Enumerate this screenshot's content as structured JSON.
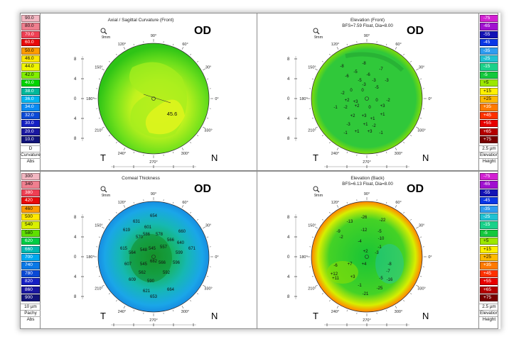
{
  "scales": {
    "curvature": {
      "values": [
        "90.0",
        "80.0",
        "70.0",
        "60.0",
        "50.0",
        "46.0",
        "44.0",
        "42.0",
        "40.0",
        "38.0",
        "36.0",
        "34.0",
        "32.0",
        "30.0",
        "20.0",
        "10.0"
      ],
      "colors": [
        "#f3b7c2",
        "#f07f8f",
        "#ef3f53",
        "#e80a0a",
        "#ff9c00",
        "#ffe800",
        "#f0f500",
        "#82f000",
        "#00d400",
        "#00b89a",
        "#00b5f0",
        "#0a8af2",
        "#0a49d6",
        "#151fc4",
        "#1a17a0",
        "#12147a"
      ],
      "foot": [
        "D",
        "Curvature",
        "Abs"
      ]
    },
    "elevation_front": {
      "values": [
        "-75",
        "-65",
        "-55",
        "-45",
        "-35",
        "-25",
        "-15",
        "-5",
        "+5",
        "+15",
        "+25",
        "+35",
        "+45",
        "+55",
        "+65",
        "+75"
      ],
      "colors": [
        "#d220d2",
        "#a010d0",
        "#1212b4",
        "#0a36e6",
        "#2f9cf0",
        "#20c2d2",
        "#1ad18a",
        "#14c83c",
        "#9be800",
        "#fff000",
        "#ffba00",
        "#ff7a00",
        "#ff3000",
        "#e80000",
        "#b40000",
        "#780000"
      ],
      "foot": [
        "2.5 µm",
        "Elevation",
        "Height"
      ]
    },
    "pachy": {
      "values": [
        "300",
        "340",
        "380",
        "420",
        "460",
        "500",
        "540",
        "580",
        "620",
        "660",
        "700",
        "740",
        "780",
        "820",
        "860",
        "900"
      ],
      "colors": [
        "#f3b7c2",
        "#f07f8f",
        "#ef3f53",
        "#e80a0a",
        "#ff9c00",
        "#ffe800",
        "#d9f000",
        "#5fe000",
        "#00cc44",
        "#00b8b0",
        "#00a8f0",
        "#0a78e6",
        "#0a49d6",
        "#151fc4",
        "#1a17a0",
        "#12147a"
      ],
      "foot": [
        "10 µm",
        "Pachy",
        "Abs"
      ]
    },
    "elevation_back": {
      "values": [
        "-75",
        "-65",
        "-55",
        "-45",
        "-35",
        "-25",
        "-15",
        "-5",
        "+5",
        "+15",
        "+25",
        "+35",
        "+45",
        "+55",
        "+65",
        "+75"
      ],
      "colors": [
        "#d220d2",
        "#a010d0",
        "#1212b4",
        "#0a36e6",
        "#2f9cf0",
        "#20c2d2",
        "#1ad18a",
        "#14c83c",
        "#9be800",
        "#fff000",
        "#ffba00",
        "#ff7a00",
        "#ff3000",
        "#e80000",
        "#b40000",
        "#780000"
      ],
      "foot": [
        "2.5 µm",
        "Elevation",
        "Height"
      ]
    }
  },
  "panels": {
    "axial": {
      "title": "Axial / Sagittal Curvature (Front)",
      "subtitle": "",
      "eye": "OD",
      "mag": "9mm",
      "temporal": "T",
      "nasal": "N",
      "center_value": "45.6",
      "values": []
    },
    "elev_front": {
      "title": "Elevation (Front)",
      "subtitle": "BFS=7.59 Float, Dia=8.00",
      "eye": "OD",
      "mag": "9mm",
      "temporal": "T",
      "nasal": "N",
      "values": [
        "-8",
        "-8",
        "-7",
        "-5",
        "-6",
        "-6",
        "-5",
        "-3",
        "-3",
        "-3",
        "-5",
        "-2",
        "0",
        "0",
        "+2",
        "+3",
        "0",
        "-2",
        "-1",
        "-2",
        "+2",
        "0",
        "+3",
        "+2",
        "+3",
        "+1",
        "+1",
        "+1",
        "-3",
        "-2",
        "+1",
        "+3",
        "-1",
        "-1"
      ]
    },
    "pachy": {
      "title": "Corneal Thickness",
      "subtitle": "",
      "eye": "OD",
      "mag": "9mm",
      "temporal": "T",
      "nasal": "N",
      "values": [
        "654",
        "631",
        "601",
        "619",
        "586",
        "578",
        "570",
        "566",
        "660",
        "640",
        "615",
        "564",
        "548",
        "545",
        "557",
        "599",
        "671",
        "607",
        "545",
        "566",
        "596",
        "682",
        "562",
        "592",
        "609",
        "590",
        "621",
        "653",
        "664"
      ]
    },
    "elev_back": {
      "title": "Elevation (Back)",
      "subtitle": "BFS=6.13 Float, Dia=8.00",
      "eye": "OD",
      "mag": "9mm",
      "temporal": "T",
      "nasal": "N",
      "values": [
        "-13",
        "-26",
        "-22",
        "-9",
        "-12",
        "-5",
        "-2",
        "-10",
        "-4",
        "+2",
        "-3",
        "-1",
        "-6",
        "+7",
        "+4",
        "-8",
        "+12",
        "+11",
        "+3",
        "-5",
        "-16",
        "-21",
        "-25",
        "-1",
        "-7"
      ]
    }
  },
  "axis": {
    "y_ticks": [
      "8",
      "4",
      "0",
      "4",
      "8"
    ],
    "x_ticks": [
      "8",
      "4",
      "0",
      "4",
      "8"
    ],
    "angles": [
      "90°",
      "60°",
      "30°",
      "0°",
      "330°",
      "300°",
      "270°",
      "240°",
      "210°",
      "180°",
      "150°",
      "120°"
    ]
  }
}
